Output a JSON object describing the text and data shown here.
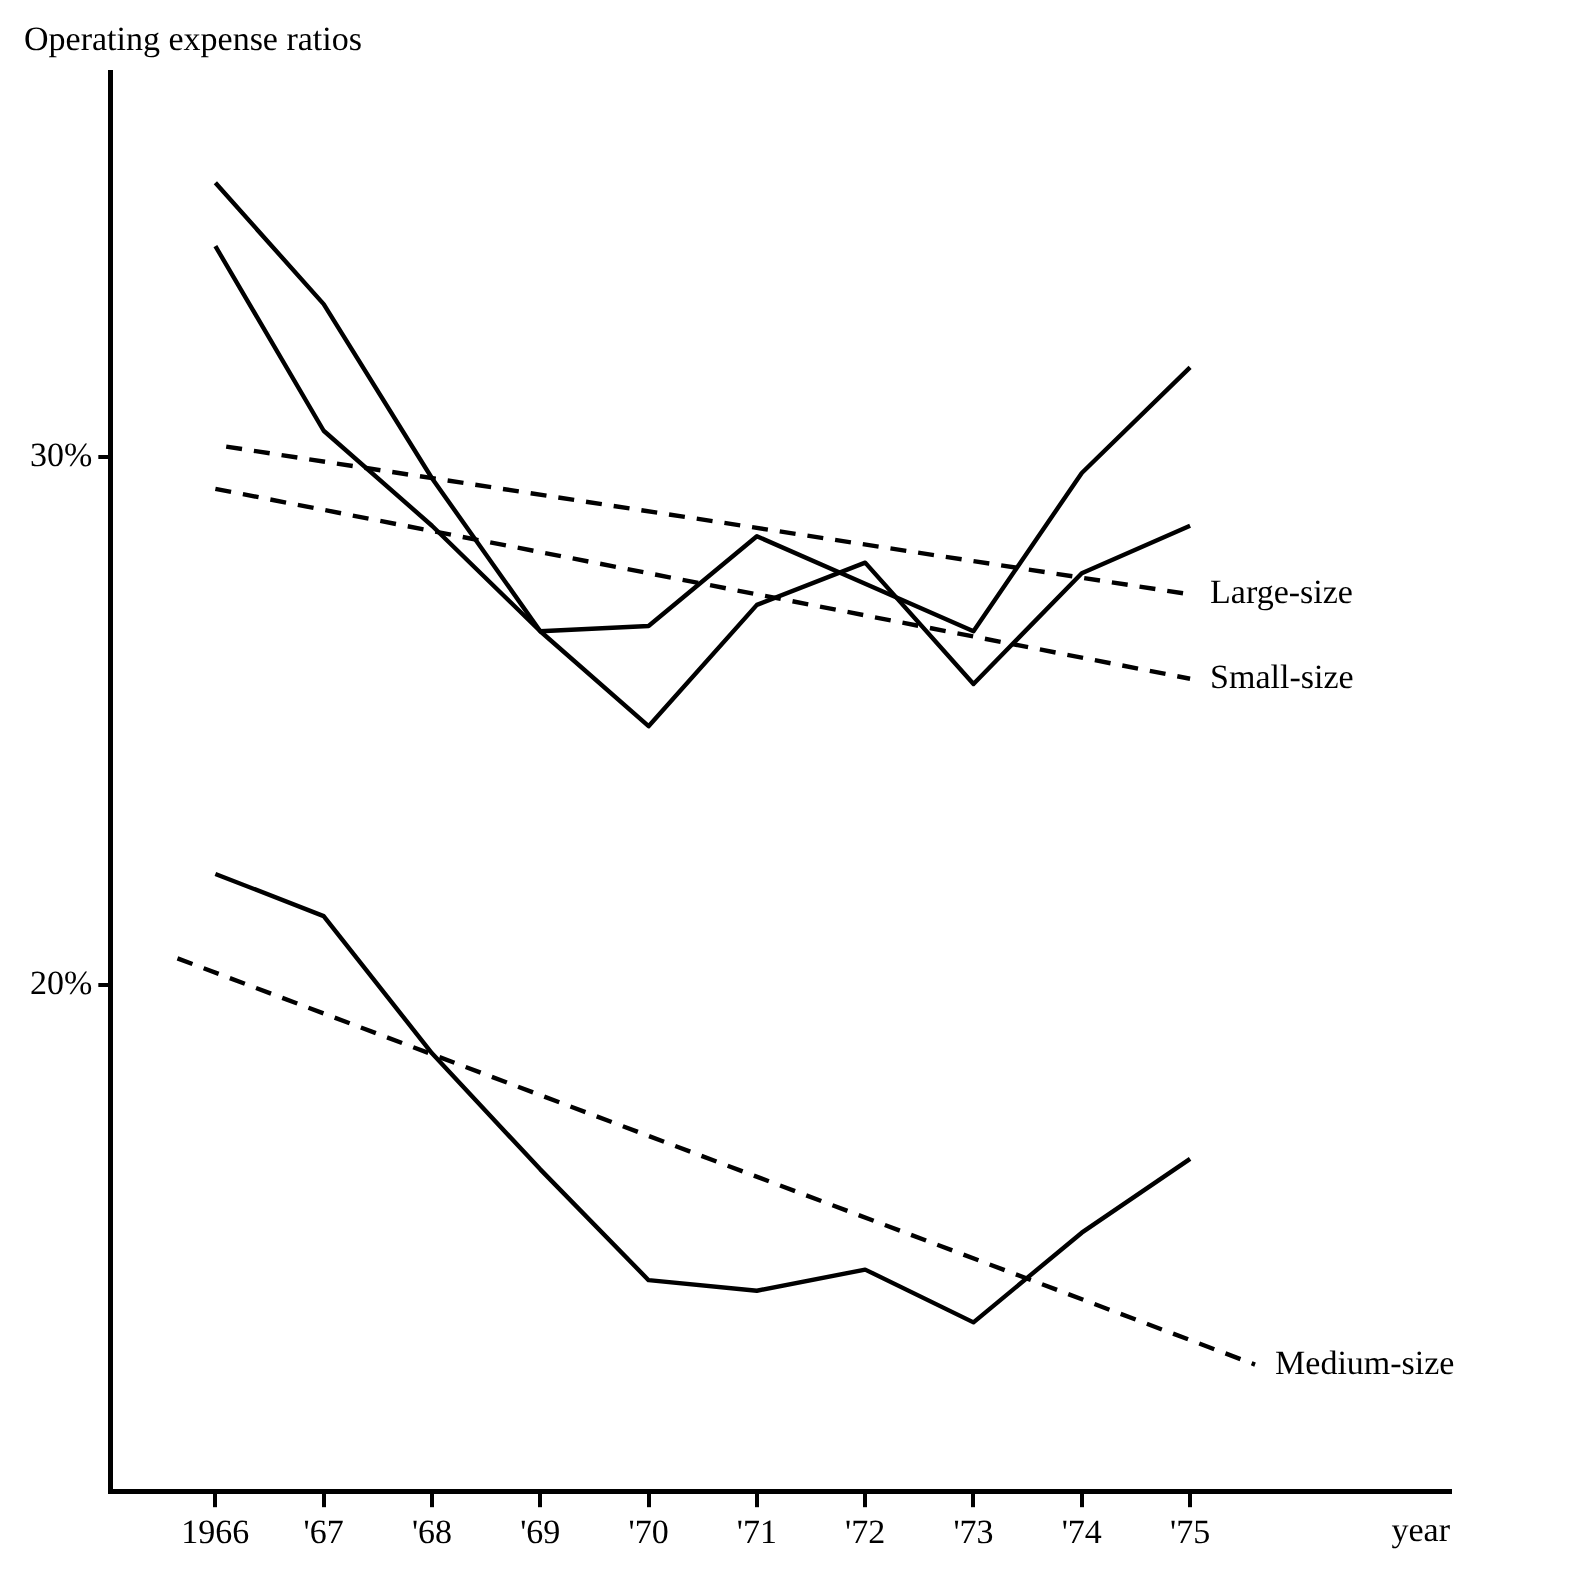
{
  "chart_data": {
    "type": "line",
    "ylabel": "Operating expense ratios",
    "xlabel": "year",
    "x": [
      1966,
      1967,
      1968,
      1969,
      1970,
      1971,
      1972,
      1973,
      1974,
      1975
    ],
    "series": [
      {
        "color": "#000000",
        "values": [
          35.2,
          32.9,
          29.6,
          26.7,
          26.8,
          28.5,
          27.6,
          26.7,
          29.7,
          31.7
        ]
      },
      {
        "color": "#000000",
        "values": [
          34.0,
          30.5,
          28.7,
          26.7,
          24.9,
          27.2,
          28.0,
          25.7,
          27.8,
          28.7
        ]
      },
      {
        "color": "#000000",
        "values": [
          22.1,
          21.3,
          18.7,
          16.5,
          14.4,
          14.2,
          14.6,
          13.6,
          15.3,
          16.7
        ]
      },
      {
        "name": "Large-size",
        "color": "#000000",
        "line_style": "dashed",
        "x": [
          1966.1,
          1975
        ],
        "values": [
          30.2,
          27.4
        ]
      },
      {
        "name": "Small-size",
        "color": "#000000",
        "line_style": "dashed",
        "x": [
          1966,
          1975
        ],
        "values": [
          29.4,
          25.8
        ]
      },
      {
        "name": "Medium-size",
        "color": "#000000",
        "line_style": "dashed",
        "x": [
          1965.65,
          1975.6
        ],
        "values": [
          20.5,
          12.8
        ]
      }
    ],
    "xlim": [
      1965.03,
      1977.4
    ],
    "xticks": [
      {
        "value": 1966,
        "label": "1966"
      },
      {
        "value": 1967,
        "label": "'67"
      },
      {
        "value": 1968,
        "label": "'68"
      },
      {
        "value": 1969,
        "label": "'69"
      },
      {
        "value": 1970,
        "label": "'70"
      },
      {
        "value": 1971,
        "label": "'71"
      },
      {
        "value": 1972,
        "label": "'72"
      },
      {
        "value": 1973,
        "label": "'73"
      },
      {
        "value": 1974,
        "label": "'74"
      },
      {
        "value": 1975,
        "label": "'75"
      }
    ],
    "ylim": [
      10.4,
      37.3
    ],
    "yticks": [
      {
        "value": 20,
        "label": "20%"
      },
      {
        "value": 30,
        "label": "30%"
      }
    ],
    "grid": false,
    "legend": false,
    "marker": "none",
    "line_style": "solid"
  }
}
